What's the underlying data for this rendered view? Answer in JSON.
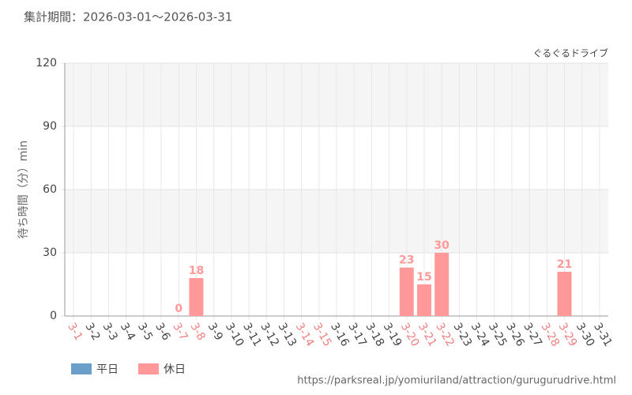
{
  "chart_data": {
    "type": "bar",
    "title": "集計期間：2026-03-01～2026-03-31",
    "subtitle": "ぐるぐるドライブ",
    "y_label": "待ち時間（分）min",
    "footer": "https://parksreal.jp/yomiuriland/attraction/gurugurudrive.html",
    "categories": [
      "3-1",
      "3-2",
      "3-3",
      "3-4",
      "3-5",
      "3-6",
      "3-7",
      "3-8",
      "3-9",
      "3-10",
      "3-11",
      "3-12",
      "3-13",
      "3-14",
      "3-15",
      "3-16",
      "3-17",
      "3-18",
      "3-19",
      "3-20",
      "3-21",
      "3-22",
      "3-23",
      "3-24",
      "3-25",
      "3-26",
      "3-27",
      "3-28",
      "3-29",
      "3-30",
      "3-31"
    ],
    "label_colors": [
      "#f08080",
      "#444444",
      "#444444",
      "#444444",
      "#444444",
      "#444444",
      "#f08080",
      "#f08080",
      "#444444",
      "#444444",
      "#444444",
      "#444444",
      "#444444",
      "#f08080",
      "#f08080",
      "#444444",
      "#444444",
      "#444444",
      "#444444",
      "#f08080",
      "#f08080",
      "#f08080",
      "#444444",
      "#444444",
      "#444444",
      "#444444",
      "#444444",
      "#f08080",
      "#f08080",
      "#444444",
      "#444444"
    ],
    "series": [
      {
        "name": "平日",
        "color": "#6b9ec8",
        "values": [
          null,
          null,
          null,
          null,
          null,
          null,
          null,
          null,
          null,
          null,
          null,
          null,
          null,
          null,
          null,
          null,
          null,
          null,
          null,
          null,
          null,
          null,
          null,
          null,
          null,
          null,
          null,
          null,
          null,
          null,
          null
        ]
      },
      {
        "name": "休日",
        "color": "#ff9999",
        "values": [
          null,
          null,
          null,
          null,
          null,
          null,
          0,
          18,
          null,
          null,
          null,
          null,
          null,
          null,
          null,
          null,
          null,
          null,
          null,
          23,
          15,
          30,
          null,
          null,
          null,
          null,
          null,
          null,
          21,
          null,
          null
        ]
      }
    ],
    "ylim": [
      0,
      120
    ],
    "yticks": [
      0,
      30,
      60,
      90,
      120
    ],
    "grid": true
  }
}
